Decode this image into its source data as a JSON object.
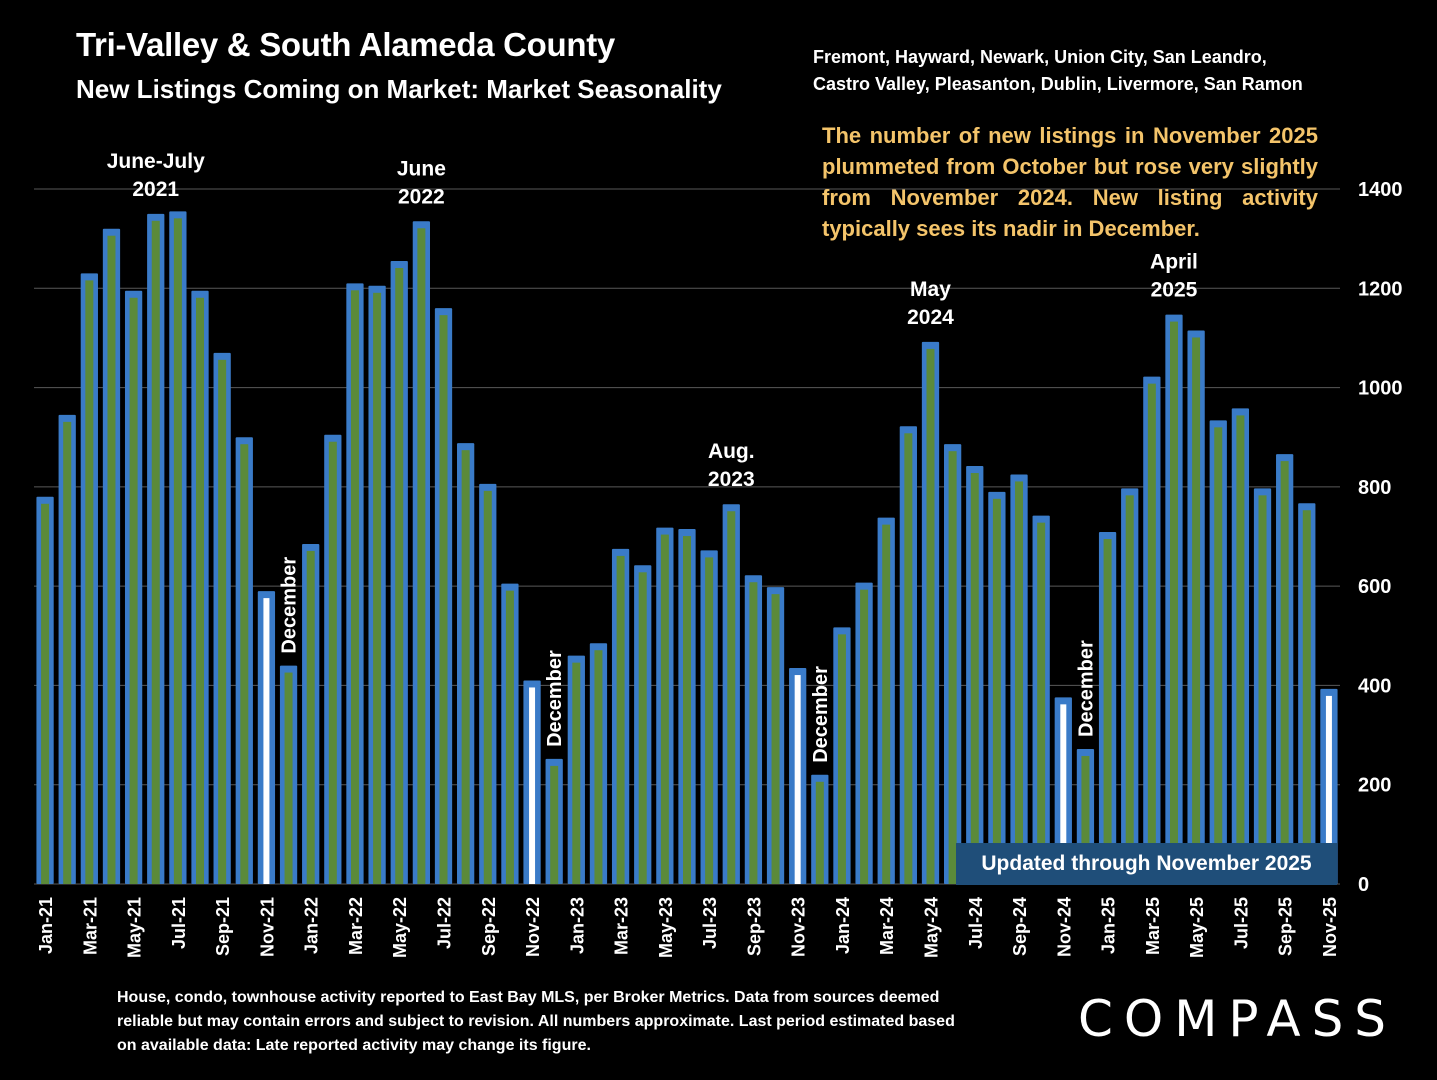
{
  "title": "Tri-Valley & South Alameda County",
  "subtitle": "New Listings Coming on Market: Market Seasonality",
  "region_lines": [
    "Fremont, Hayward, Newark, Union City, San Leandro,",
    "Castro Valley, Pleasanton, Dublin, Livermore, San Ramon"
  ],
  "annotation": "The number of new listings in November 2025 plummeted from October but rose very slightly from November 2024.  New listing activity typically sees its nadir in December.",
  "updated_label": "Updated through November 2025",
  "footnote": "House, condo, townhouse activity reported to East Bay MLS, per Broker Metrics. Data from sources deemed reliable but may contain errors and subject to revision. All numbers approximate. Last period estimated based on available data: Late reported activity may change its figure.",
  "logo": "COMPASS",
  "colors": {
    "background": "#000000",
    "bar_fill": "#5b8a3a",
    "bar_border": "#3a7bc8",
    "november_bar": "#ffffff",
    "annotation_text": "#f4c46a",
    "updated_box": "#1f4e79",
    "gridline": "#595959"
  },
  "chart_data": {
    "type": "bar",
    "title": "New Listings Coming on Market: Market Seasonality",
    "xlabel": "",
    "ylabel": "",
    "ylim": [
      0,
      1400
    ],
    "yticks": [
      0,
      200,
      400,
      600,
      800,
      1000,
      1200,
      1400
    ],
    "y_axis_side": "right",
    "grid": true,
    "categories": [
      "Jan-21",
      "Feb-21",
      "Mar-21",
      "Apr-21",
      "May-21",
      "Jun-21",
      "Jul-21",
      "Aug-21",
      "Sep-21",
      "Oct-21",
      "Nov-21",
      "Dec-21",
      "Jan-22",
      "Feb-22",
      "Mar-22",
      "Apr-22",
      "May-22",
      "Jun-22",
      "Jul-22",
      "Aug-22",
      "Sep-22",
      "Oct-22",
      "Nov-22",
      "Dec-22",
      "Jan-23",
      "Feb-23",
      "Mar-23",
      "Apr-23",
      "May-23",
      "Jun-23",
      "Jul-23",
      "Aug-23",
      "Sep-23",
      "Oct-23",
      "Nov-23",
      "Dec-23",
      "Jan-24",
      "Feb-24",
      "Mar-24",
      "Apr-24",
      "May-24",
      "Jun-24",
      "Jul-24",
      "Aug-24",
      "Sep-24",
      "Oct-24",
      "Nov-24",
      "Dec-24",
      "Jan-25",
      "Feb-25",
      "Mar-25",
      "Apr-25",
      "May-25",
      "Jun-25",
      "Jul-25",
      "Aug-25",
      "Sep-25",
      "Oct-25",
      "Nov-25"
    ],
    "tick_labels": [
      "Jan-21",
      "Mar-21",
      "May-21",
      "Jul-21",
      "Sep-21",
      "Nov-21",
      "Jan-22",
      "Mar-22",
      "May-22",
      "Jul-22",
      "Sep-22",
      "Nov-22",
      "Jan-23",
      "Mar-23",
      "May-23",
      "Jul-23",
      "Sep-23",
      "Nov-23",
      "Jan-24",
      "Mar-24",
      "May-24",
      "Jul-24",
      "Sep-24",
      "Nov-24",
      "Jan-25",
      "Mar-25",
      "May-25",
      "Jul-25",
      "Sep-25",
      "Nov-25"
    ],
    "values": [
      780,
      945,
      1230,
      1320,
      1195,
      1350,
      1355,
      1195,
      1070,
      900,
      590,
      440,
      685,
      905,
      1210,
      1205,
      1255,
      1335,
      1160,
      888,
      806,
      605,
      410,
      252,
      460,
      485,
      675,
      642,
      718,
      715,
      672,
      765,
      622,
      598,
      435,
      220,
      517,
      607,
      738,
      922,
      1092,
      886,
      842,
      790,
      825,
      742,
      376,
      272,
      709,
      797,
      1022,
      1147,
      1115,
      934,
      958,
      797,
      866,
      767,
      393
    ],
    "highlight_november": true,
    "annotations": [
      {
        "category": "Jun-21",
        "lines": [
          "June-July",
          "2021"
        ]
      },
      {
        "category": "Jun-22",
        "lines": [
          "June",
          "2022"
        ]
      },
      {
        "category": "Aug-23",
        "lines": [
          "Aug.",
          "2023"
        ]
      },
      {
        "category": "May-24",
        "lines": [
          "May",
          "2024"
        ]
      },
      {
        "category": "Apr-25",
        "lines": [
          "April",
          "2025"
        ]
      }
    ],
    "december_labels": [
      {
        "category": "Dec-21",
        "text": "December"
      },
      {
        "category": "Dec-22",
        "text": "December"
      },
      {
        "category": "Dec-23",
        "text": "December"
      },
      {
        "category": "Dec-24",
        "text": "December"
      }
    ]
  }
}
